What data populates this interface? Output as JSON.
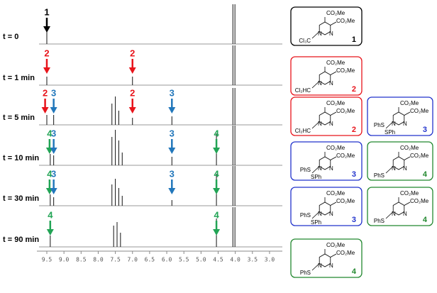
{
  "axis": {
    "xlim": [
      9.7,
      2.7
    ],
    "ticks": [
      9.5,
      {
        "value": 9,
        "label": "9.0"
      },
      8.5,
      {
        "value": 8,
        "label": "8.0"
      },
      7.5,
      {
        "value": 7,
        "label": "7.0"
      },
      6.5,
      {
        "value": 6,
        "label": "6.0"
      },
      5.5,
      {
        "value": 5,
        "label": "5.0"
      },
      4.5,
      {
        "value": 4,
        "label": "4.0"
      },
      3.5,
      {
        "value": 3,
        "label": "3.0"
      }
    ]
  },
  "spectra": [
    {
      "label": "t = 0",
      "peaks": [
        {
          "ppm": 9.5,
          "height": 18
        },
        {
          "ppm": 4.07,
          "height": 56
        },
        {
          "ppm": 4.01,
          "height": 56
        }
      ],
      "arrows": [
        {
          "label": "1",
          "ppm": 9.5,
          "color": "#000000"
        }
      ]
    },
    {
      "label": "t = 1 min",
      "peaks": [
        {
          "ppm": 9.5,
          "height": 12
        },
        {
          "ppm": 7.0,
          "height": 12
        },
        {
          "ppm": 4.07,
          "height": 56
        },
        {
          "ppm": 4.01,
          "height": 56
        }
      ],
      "arrows": [
        {
          "label": "2",
          "ppm": 9.5,
          "color": "#e8141b"
        },
        {
          "label": "2",
          "ppm": 7.0,
          "color": "#e8141b"
        }
      ]
    },
    {
      "label": "t = 5 min",
      "peaks": [
        {
          "ppm": 9.5,
          "height": 14
        },
        {
          "ppm": 9.3,
          "height": 14
        },
        {
          "ppm": 7.6,
          "height": 30
        },
        {
          "ppm": 7.5,
          "height": 40
        },
        {
          "ppm": 7.4,
          "height": 20
        },
        {
          "ppm": 7.0,
          "height": 10
        },
        {
          "ppm": 5.85,
          "height": 12
        },
        {
          "ppm": 4.07,
          "height": 52
        },
        {
          "ppm": 4.01,
          "height": 52
        }
      ],
      "arrows": [
        {
          "label": "2",
          "ppm": 9.55,
          "color": "#e8141b"
        },
        {
          "label": "3",
          "ppm": 9.3,
          "color": "#2277bb"
        },
        {
          "label": "2",
          "ppm": 7.0,
          "color": "#e8141b"
        },
        {
          "label": "3",
          "ppm": 5.85,
          "color": "#2277bb"
        }
      ]
    },
    {
      "label": "t = 10 min",
      "peaks": [
        {
          "ppm": 9.4,
          "height": 16
        },
        {
          "ppm": 9.3,
          "height": 14
        },
        {
          "ppm": 7.6,
          "height": 40
        },
        {
          "ppm": 7.5,
          "height": 50
        },
        {
          "ppm": 7.4,
          "height": 35
        },
        {
          "ppm": 7.3,
          "height": 18
        },
        {
          "ppm": 5.85,
          "height": 12
        },
        {
          "ppm": 4.55,
          "height": 45
        },
        {
          "ppm": 4.07,
          "height": 56
        },
        {
          "ppm": 4.01,
          "height": 56
        }
      ],
      "arrows": [
        {
          "label": "4",
          "ppm": 9.42,
          "color": "#22a455"
        },
        {
          "label": "3",
          "ppm": 9.3,
          "color": "#2277bb"
        },
        {
          "label": "3",
          "ppm": 5.85,
          "color": "#2277bb"
        },
        {
          "label": "4",
          "ppm": 4.55,
          "color": "#22a455"
        }
      ]
    },
    {
      "label": "t = 30 min",
      "peaks": [
        {
          "ppm": 9.4,
          "height": 16
        },
        {
          "ppm": 9.3,
          "height": 12
        },
        {
          "ppm": 7.6,
          "height": 30
        },
        {
          "ppm": 7.5,
          "height": 38
        },
        {
          "ppm": 7.4,
          "height": 25
        },
        {
          "ppm": 7.3,
          "height": 14
        },
        {
          "ppm": 5.85,
          "height": 8
        },
        {
          "ppm": 4.55,
          "height": 45
        },
        {
          "ppm": 4.07,
          "height": 56
        },
        {
          "ppm": 4.01,
          "height": 56
        }
      ],
      "arrows": [
        {
          "label": "4",
          "ppm": 9.42,
          "color": "#22a455"
        },
        {
          "label": "3",
          "ppm": 9.3,
          "color": "#2277bb"
        },
        {
          "label": "3",
          "ppm": 5.85,
          "color": "#2277bb"
        },
        {
          "label": "4",
          "ppm": 4.55,
          "color": "#22a455"
        }
      ]
    },
    {
      "label": "t = 90 min",
      "peaks": [
        {
          "ppm": 9.4,
          "height": 16
        },
        {
          "ppm": 7.55,
          "height": 30
        },
        {
          "ppm": 7.45,
          "height": 35
        },
        {
          "ppm": 7.35,
          "height": 20
        },
        {
          "ppm": 4.55,
          "height": 40
        },
        {
          "ppm": 4.07,
          "height": 56
        },
        {
          "ppm": 4.01,
          "height": 56
        }
      ],
      "arrows": [
        {
          "label": "4",
          "ppm": 9.4,
          "color": "#22a455"
        },
        {
          "label": "4",
          "ppm": 4.55,
          "color": "#22a455"
        }
      ]
    }
  ],
  "structures": [
    {
      "top": "CO₂Me",
      "right": "CO₂Me",
      "ring": [
        "N",
        "N"
      ],
      "substituent": "Cl₃C",
      "number": "1",
      "color": "#000000"
    },
    {
      "top": "CO₂Me",
      "right": "CO₂Me",
      "ring": [
        "N",
        "N"
      ],
      "substituent": "Cl₂HC",
      "number": "2",
      "color": "#e8141b"
    },
    {
      "top": "CO₂Me",
      "right": "CO₂Me",
      "ring": [
        "N",
        "N"
      ],
      "substituent": "Cl₂HC",
      "number": "2",
      "color": "#e8141b"
    },
    {
      "top": "CO₂Me",
      "right": "CO₂Me",
      "ring": [
        "N",
        "N"
      ],
      "substituent": "PhS",
      "extra": "SPh",
      "number": "3",
      "color": "#2233cc"
    },
    {
      "top": "CO₂Me",
      "right": "CO₂Me",
      "ring": [
        "N",
        "N"
      ],
      "substituent": "PhS",
      "extra": "SPh",
      "number": "3",
      "color": "#2233cc"
    },
    {
      "top": "CO₂Me",
      "right": "CO₂Me",
      "ring": [
        "N",
        "N"
      ],
      "substituent": "PhS",
      "extra": "SPh",
      "number": "3",
      "color": "#2233cc"
    },
    {
      "top": "CO₂Me",
      "right": "CO₂Me",
      "ring": [
        "N",
        "N"
      ],
      "substituent": "PhS",
      "number": "4",
      "color": "#22882f"
    },
    {
      "top": "CO₂Me",
      "right": "CO₂Me",
      "ring": [
        "N",
        "N"
      ],
      "substituent": "PhS",
      "number": "4",
      "color": "#22882f"
    },
    {
      "top": "CO₂Me",
      "right": "CO₂Me",
      "ring": [
        "N",
        "N"
      ],
      "substituent": "PhS",
      "number": "4",
      "color": "#22882f"
    }
  ]
}
